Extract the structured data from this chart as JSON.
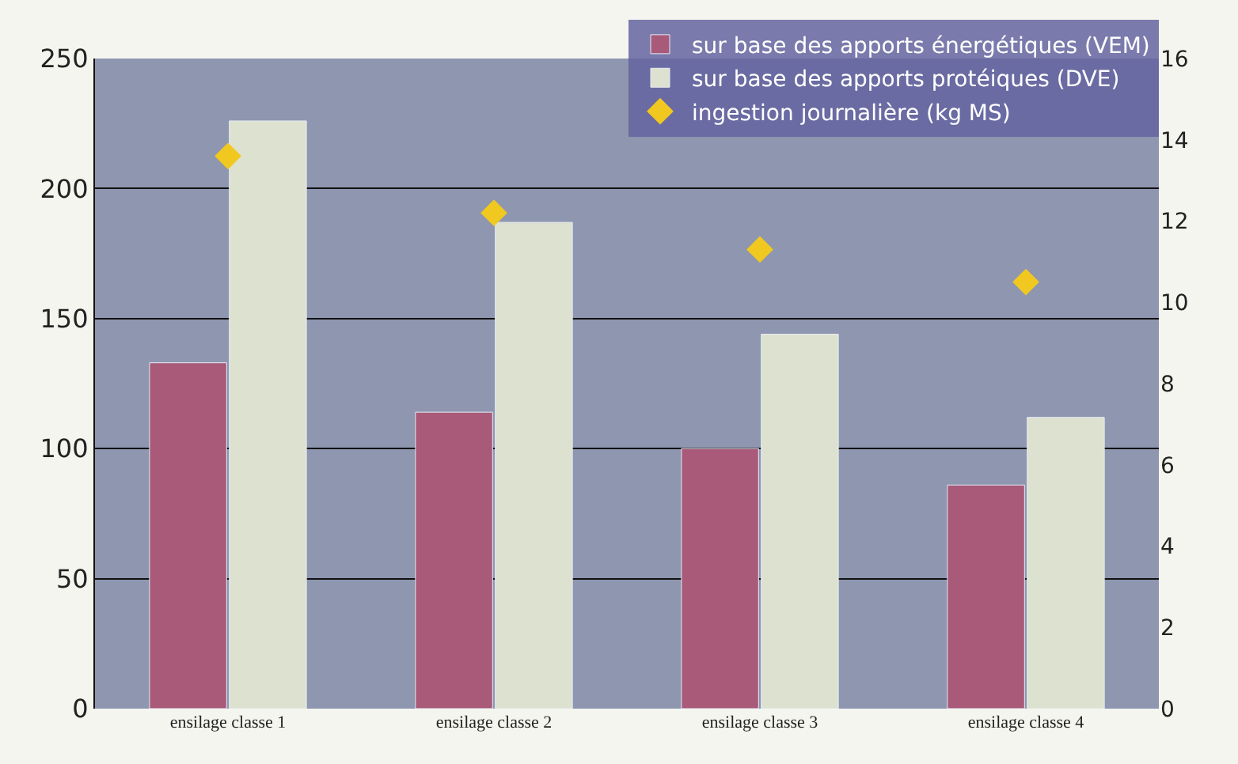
{
  "chart_data": {
    "type": "bar",
    "categories": [
      "ensilage classe 1",
      "ensilage classe 2",
      "ensilage classe 3",
      "ensilage classe 4"
    ],
    "series": [
      {
        "name": "sur base des apports énergétiques (VEM)",
        "color": "#a85a78",
        "values": [
          133,
          114,
          100,
          86
        ]
      },
      {
        "name": "sur base des apports protéiques (DVE)",
        "color": "#dde1cf",
        "values": [
          226,
          187,
          144,
          112
        ]
      },
      {
        "name": "ingestion journalière (kg MS)",
        "type": "scatter",
        "axis": "y2",
        "marker": "diamond",
        "color": "#f0c820",
        "values": [
          13.6,
          12.2,
          11.3,
          10.5
        ]
      }
    ],
    "ylim": [
      0,
      250
    ],
    "yticks": [
      0,
      50,
      100,
      150,
      200,
      250
    ],
    "y2lim": [
      0,
      16
    ],
    "y2ticks": [
      0,
      2,
      4,
      6,
      8,
      10,
      12,
      14,
      16
    ],
    "grid": "y",
    "legend": "top right"
  }
}
